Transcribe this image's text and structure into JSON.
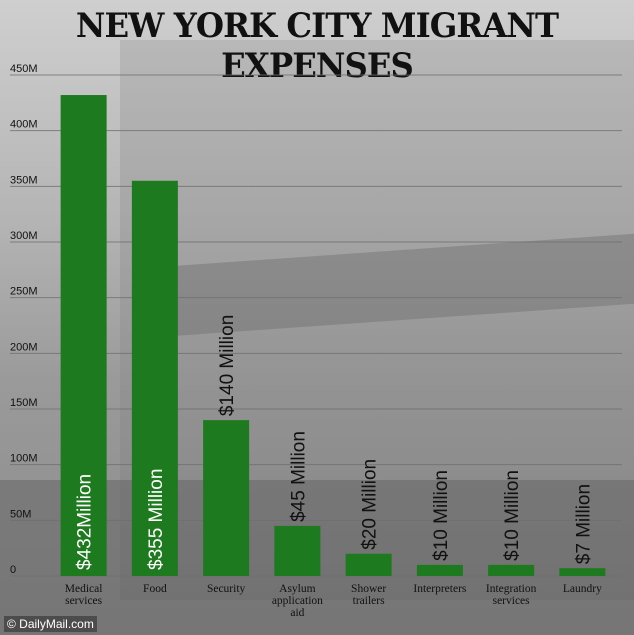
{
  "title": "NEW YORK CITY MIGRANT EXPENSES",
  "credit": "© DailyMail.com",
  "colors": {
    "bar": "#1e7a1e",
    "grid": "#6f6f6f"
  },
  "chart_data": {
    "type": "bar",
    "title": "NEW YORK CITY MIGRANT EXPENSES",
    "xlabel": "",
    "ylabel": "",
    "ylim": [
      0,
      450
    ],
    "yunit": "M",
    "yticks": [
      "0",
      "50M",
      "100M",
      "150M",
      "200M",
      "250M",
      "300M",
      "350M",
      "400M",
      "450M"
    ],
    "grid": true,
    "categories": [
      [
        "Medical",
        "services"
      ],
      [
        "Food"
      ],
      [
        "Security"
      ],
      [
        "Asylum",
        "application",
        "aid"
      ],
      [
        "Shower",
        "trailers"
      ],
      [
        "Interpreters"
      ],
      [
        "Integration",
        "services"
      ],
      [
        "Laundry"
      ]
    ],
    "values": [
      432,
      355,
      140,
      45,
      20,
      10,
      10,
      7
    ],
    "data_labels": [
      "$432Million",
      "$355 Million",
      "$140 Million",
      "$45 Million",
      "$20 Million",
      "$10 Million",
      "$10 Million",
      "$7 Million"
    ]
  }
}
